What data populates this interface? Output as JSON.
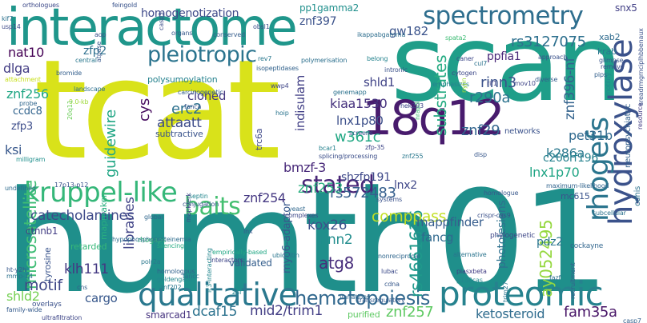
{
  "words": [
    {
      "text": "humth01",
      "color": "#1f8f8b"
    },
    {
      "text": "tcat",
      "color": "#d9e21a"
    },
    {
      "text": "scan",
      "color": "#1f9e89"
    },
    {
      "text": "interactome",
      "color": "#1f968b"
    },
    {
      "text": "18q12",
      "color": "#481b6d"
    },
    {
      "text": "spectrometry",
      "color": "#2e6e8e"
    },
    {
      "text": "hydroxylase",
      "color": "#3b528b"
    },
    {
      "text": "proteomic",
      "color": "#26828e"
    },
    {
      "text": "qualitative",
      "color": "#2a788e"
    },
    {
      "text": "kruppel-like",
      "color": "#35b779"
    },
    {
      "text": "rhogefs",
      "color": "#2b758e"
    },
    {
      "text": "pleiotropic",
      "color": "#2b748e"
    },
    {
      "text": "baits",
      "color": "#44bf70"
    },
    {
      "text": "stated",
      "color": "#482677"
    },
    {
      "text": "hematopoiesis",
      "color": "#31688e"
    },
    {
      "text": "microsatellite",
      "color": "#3dbc74"
    },
    {
      "text": "substrates",
      "color": "#25ab82"
    },
    {
      "text": "catecholamines",
      "color": "#3e4a89"
    },
    {
      "text": "mid2/trim1",
      "color": "#433e85"
    },
    {
      "text": "znf257",
      "color": "#5ec962"
    },
    {
      "text": "ketosteroid",
      "color": "#2f6c8e"
    },
    {
      "text": "fam35a",
      "color": "#481567"
    },
    {
      "text": "rs4661636",
      "color": "#1f988b"
    },
    {
      "text": "comppass",
      "color": "#c2df23"
    },
    {
      "text": "ay052495",
      "color": "#95d840"
    },
    {
      "text": "guidewire",
      "color": "#21a685"
    },
    {
      "text": "libraries",
      "color": "#414487"
    },
    {
      "text": "mapmaker",
      "color": "#29af7f"
    },
    {
      "text": "motif",
      "color": "#3f4788"
    },
    {
      "text": "atg8",
      "color": "#472d7b"
    },
    {
      "text": "dcaf15",
      "color": "#2c728e"
    },
    {
      "text": "shld2",
      "color": "#75d054"
    },
    {
      "text": "cargo",
      "color": "#38588c"
    },
    {
      "text": "klh111",
      "color": "#443983"
    },
    {
      "text": "smarcad1",
      "color": "#46337f"
    },
    {
      "text": "rs3127075",
      "color": "#2d708e"
    },
    {
      "text": "znf396-nf",
      "color": "#33638d"
    },
    {
      "text": "rinn3",
      "color": "#3b528b"
    },
    {
      "text": "r290a",
      "color": "#2c728e"
    },
    {
      "text": "ppfia1",
      "color": "#482878"
    },
    {
      "text": "shld1",
      "color": "#414487"
    },
    {
      "text": "znf29",
      "color": "#32658e"
    },
    {
      "text": "pet31b",
      "color": "#30698e"
    },
    {
      "text": "k286a",
      "color": "#2a788e"
    },
    {
      "text": "networks",
      "color": "#3b528b"
    },
    {
      "text": "c20orf196",
      "color": "#26828e"
    },
    {
      "text": "lnx1p70",
      "color": "#21a585"
    },
    {
      "text": "mc615",
      "color": "#3a548c"
    },
    {
      "text": "pdz2",
      "color": "#2b758e"
    },
    {
      "text": "cdhis",
      "color": "#2c728e"
    },
    {
      "text": "indisulam",
      "color": "#424086"
    },
    {
      "text": "kiaa1530",
      "color": "#46327e"
    },
    {
      "text": "lnx1p80",
      "color": "#3c4f8a"
    },
    {
      "text": "w361c",
      "color": "#22a884"
    },
    {
      "text": "erc2",
      "color": "#2d718e"
    },
    {
      "text": "attaatt",
      "color": "#3e4c8a"
    },
    {
      "text": "cloned",
      "color": "#453781"
    },
    {
      "text": "cys",
      "color": "#470d60"
    },
    {
      "text": "znf256",
      "color": "#22a785"
    },
    {
      "text": "ccdc8",
      "color": "#32648e"
    },
    {
      "text": "zfp3",
      "color": "#3d4d8a"
    },
    {
      "text": "ksi",
      "color": "#38588c"
    },
    {
      "text": "nat10",
      "color": "#440154"
    },
    {
      "text": "zfp2",
      "color": "#2d708e"
    },
    {
      "text": "dlga",
      "color": "#433d84"
    },
    {
      "text": "homogenotization",
      "color": "#3e4989"
    },
    {
      "text": "pp1gamma2",
      "color": "#21908d"
    },
    {
      "text": "znf397",
      "color": "#3b528b"
    },
    {
      "text": "gw182",
      "color": "#3a538b"
    },
    {
      "text": "xab2",
      "color": "#2f6b8e"
    },
    {
      "text": "krab",
      "color": "#2a788e"
    },
    {
      "text": "snx5",
      "color": "#424086"
    },
    {
      "text": "bmzf-3",
      "color": "#482979"
    },
    {
      "text": "shzfp191",
      "color": "#3e4989"
    },
    {
      "text": "lnx2",
      "color": "#3f4788"
    },
    {
      "text": "rs572483",
      "color": "#355f8d"
    },
    {
      "text": "znf253",
      "color": "#29af7f"
    },
    {
      "text": "znf254",
      "color": "#453882"
    },
    {
      "text": "kox26",
      "color": "#3b528b"
    },
    {
      "text": "rinn2",
      "color": "#228d8d"
    },
    {
      "text": "fancg",
      "color": "#30698e"
    },
    {
      "text": "mappfinder",
      "color": "#365d8d"
    },
    {
      "text": "photolesions",
      "color": "#2d708e"
    },
    {
      "text": "myo6-adaptor",
      "color": "#38588c"
    },
    {
      "text": "ctnnb1",
      "color": "#433e85"
    },
    {
      "text": "tyrosine",
      "color": "#3a548c"
    },
    {
      "text": "validated",
      "color": "#355f8d"
    },
    {
      "text": "retarded",
      "color": "#37b878"
    },
    {
      "text": "subtractive",
      "color": "#3a548c"
    },
    {
      "text": "polysumoylation",
      "color": "#26828e"
    },
    {
      "text": "trc6a",
      "color": "#3f4889"
    },
    {
      "text": "interactors",
      "color": "#404688"
    },
    {
      "text": "empirically-based",
      "color": "#22a785"
    },
    {
      "text": "ubiquitin",
      "color": "#2a768e"
    },
    {
      "text": "phylogenetic",
      "color": "#3f4889"
    },
    {
      "text": "neuropsychiatric",
      "color": "#34618d"
    },
    {
      "text": "cockayne",
      "color": "#31668e"
    },
    {
      "text": "crispr-cas9",
      "color": "#3b528b"
    },
    {
      "text": "alternative",
      "color": "#2b748e"
    },
    {
      "text": "p130cas",
      "color": "#24878e"
    },
    {
      "text": "recruitment",
      "color": "#34608d"
    },
    {
      "text": "trim27",
      "color": "#2b758e"
    },
    {
      "text": "purified",
      "color": "#5ec962"
    },
    {
      "text": "transregulatory",
      "color": "#365c8d"
    },
    {
      "text": "lc3-interacting",
      "color": "#24868e"
    },
    {
      "text": "overlays",
      "color": "#3b528b"
    },
    {
      "text": "family-wide",
      "color": "#365c8d"
    },
    {
      "text": "ultrafiltration",
      "color": "#3f4788"
    },
    {
      "text": "homologous",
      "color": "#33638d"
    },
    {
      "text": "goldengate",
      "color": "#24878e"
    },
    {
      "text": "silencing",
      "color": "#25ab82"
    },
    {
      "text": "rhogaps",
      "color": "#37b878"
    },
    {
      "text": "polr2a",
      "color": "#2a788e"
    },
    {
      "text": "global",
      "color": "#31688e"
    },
    {
      "text": "milligram",
      "color": "#21908d"
    },
    {
      "text": "landscape",
      "color": "#2d708e"
    },
    {
      "text": "probe",
      "color": "#31678e"
    },
    {
      "text": "attachment",
      "color": "#c8e020"
    },
    {
      "text": "carcinogenetic",
      "color": "#35608d"
    },
    {
      "text": "isopeptidases",
      "color": "#33638d"
    },
    {
      "text": "polymerisation",
      "color": "#2d708e"
    },
    {
      "text": "orthologues",
      "color": "#3e4a89"
    },
    {
      "text": "feingold",
      "color": "#3a548c"
    },
    {
      "text": "conserved",
      "color": "#365d8d"
    },
    {
      "text": "organs",
      "color": "#38598c"
    },
    {
      "text": "ikappabgamma",
      "color": "#2e6e8e"
    },
    {
      "text": "approach",
      "color": "#3b528b"
    },
    {
      "text": "glimpse",
      "color": "#39568c"
    },
    {
      "text": "remove",
      "color": "#3c508b"
    },
    {
      "text": "diverse",
      "color": "#365c8d"
    },
    {
      "text": "motility",
      "color": "#24878e"
    },
    {
      "text": "mov10",
      "color": "#404688"
    },
    {
      "text": "rif1",
      "color": "#414487"
    },
    {
      "text": "emphasizes",
      "color": "#26828e"
    },
    {
      "text": "intronic",
      "color": "#3b528b"
    },
    {
      "text": "genemapp",
      "color": "#2c728e"
    },
    {
      "text": "yeast",
      "color": "#31688e"
    },
    {
      "text": "complexes",
      "color": "#3e4989"
    },
    {
      "text": "septin",
      "color": "#24878e"
    },
    {
      "text": "conjugation",
      "color": "#38588c"
    },
    {
      "text": "homologue",
      "color": "#38588c"
    },
    {
      "text": "systems",
      "color": "#3b528b"
    },
    {
      "text": "screens",
      "color": "#3a548c"
    },
    {
      "text": "maximum-likelihood",
      "color": "#32648e"
    },
    {
      "text": "subcellular",
      "color": "#2c728e"
    },
    {
      "text": "resource",
      "color": "#433e85"
    },
    {
      "text": "bromide",
      "color": "#35608d"
    },
    {
      "text": "central",
      "color": "#2a788e"
    },
    {
      "text": "kif7",
      "color": "#2c718e"
    },
    {
      "text": "usp14",
      "color": "#3e4a89"
    },
    {
      "text": "hoip",
      "color": "#2b748e"
    },
    {
      "text": "hek293",
      "color": "#3f4889"
    },
    {
      "text": "nonreciprocal",
      "color": "#31678e"
    },
    {
      "text": "splicing/processing",
      "color": "#3c4f8a"
    },
    {
      "text": "hypophosphoproteinemia",
      "color": "#2e6d8e"
    },
    {
      "text": "undefined",
      "color": "#2f6c8e"
    },
    {
      "text": "lnx",
      "color": "#39568c"
    },
    {
      "text": "cns",
      "color": "#34608d"
    },
    {
      "text": "variations",
      "color": "#31688e"
    },
    {
      "text": "lubac",
      "color": "#3e4c8a"
    },
    {
      "text": "cdna",
      "color": "#38598c"
    },
    {
      "text": "piasxbeta",
      "color": "#433e85"
    },
    {
      "text": "fancc",
      "color": "#2d708e"
    },
    {
      "text": "znf202",
      "color": "#2a788e"
    },
    {
      "text": "casp7",
      "color": "#34618d"
    },
    {
      "text": "obsl1",
      "color": "#3c4f8a"
    },
    {
      "text": "belong",
      "color": "#25838e"
    },
    {
      "text": "caner",
      "color": "#3e4989"
    },
    {
      "text": "rev7",
      "color": "#2a788e"
    },
    {
      "text": "spata2",
      "color": "#3dbc74"
    },
    {
      "text": "atpase",
      "color": "#38598c"
    },
    {
      "text": "mapk/erk",
      "color": "#3e4989"
    },
    {
      "text": "bcar1",
      "color": "#26828e"
    },
    {
      "text": "9.0-kb",
      "color": "#9fda3a"
    },
    {
      "text": "ht-y2h",
      "color": "#38598c"
    },
    {
      "text": "17p13-p12",
      "color": "#3b528b"
    },
    {
      "text": "mmp-14",
      "color": "#2c728e"
    },
    {
      "text": "20q11",
      "color": "#6ccd5a"
    },
    {
      "text": "aop",
      "color": "#3b528b"
    },
    {
      "text": "casp3",
      "color": "#3d4e8a"
    },
    {
      "text": "nyjin",
      "color": "#a0da39"
    },
    {
      "text": "cul7",
      "color": "#2c728e"
    },
    {
      "text": "fazf",
      "color": "#2e6d8e"
    },
    {
      "text": "pips",
      "color": "#34618d"
    },
    {
      "text": "disp",
      "color": "#38588c"
    },
    {
      "text": "znf255",
      "color": "#2a788e"
    },
    {
      "text": "zfp-35",
      "color": "#3f4788"
    },
    {
      "text": "nrap3",
      "color": "#3dbc74"
    },
    {
      "text": "sreadrmgrnciplhbbenaux",
      "color": "#3b528b"
    },
    {
      "text": "cytogen",
      "color": "#3e4989"
    },
    {
      "text": "wwp4",
      "color": "#404688"
    },
    {
      "text": "fanca",
      "color": "#38588c"
    },
    {
      "text": "znf",
      "color": "#24878e"
    }
  ]
}
